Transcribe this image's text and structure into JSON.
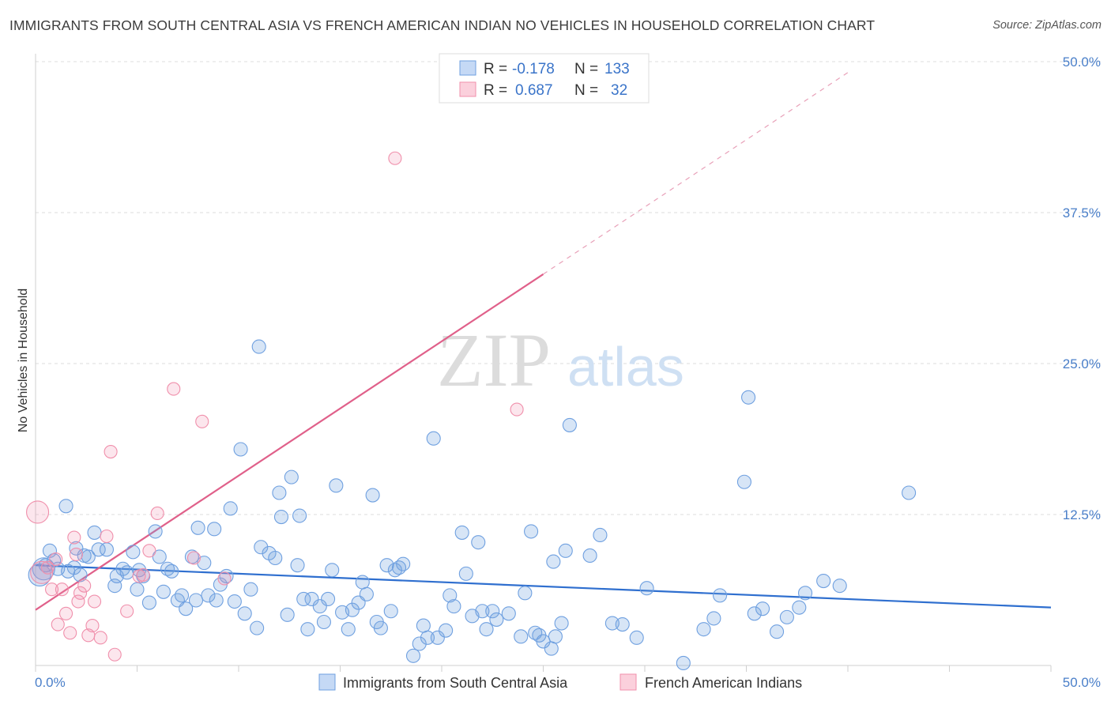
{
  "title": "IMMIGRANTS FROM SOUTH CENTRAL ASIA VS FRENCH AMERICAN INDIAN NO VEHICLES IN HOUSEHOLD CORRELATION CHART",
  "source": "Source: ZipAtlas.com",
  "watermark": {
    "zip": "ZIP",
    "atlas": "atlas"
  },
  "legend": {
    "r_label": "R =",
    "n_label": "N =",
    "rows": [
      {
        "r": "-0.178",
        "n": "133",
        "color": "#6fa0e0"
      },
      {
        "r": "0.687",
        "n": "32",
        "color": "#f08fab"
      }
    ]
  },
  "colors": {
    "blue": "#6fa0e0",
    "pink": "#f08fab",
    "blue_line": "#2f6fcf",
    "pink_line": "#e0608a",
    "tick": "#4a7fc9"
  },
  "chart_data": {
    "type": "scatter",
    "xlabel": "",
    "ylabel": "No Vehicles in Household",
    "xlim": [
      0,
      50
    ],
    "ylim": [
      0,
      50
    ],
    "x_tick_labels": [
      "0.0%",
      "50.0%"
    ],
    "y_ticks": [
      12.5,
      25.0,
      37.5,
      50.0
    ],
    "y_tick_labels": [
      "12.5%",
      "25.0%",
      "37.5%",
      "50.0%"
    ],
    "grid": true,
    "legend_position": "top-center",
    "series": [
      {
        "name": "Immigrants from South Central Asia",
        "color": "#6fa0e0",
        "trend": {
          "x0": 0,
          "y0": 8.3,
          "x1": 50,
          "y1": 4.8
        },
        "points": [
          [
            0.2,
            7.5
          ],
          [
            0.4,
            8.0
          ],
          [
            0.5,
            8.3
          ],
          [
            0.7,
            9.5
          ],
          [
            0.9,
            8.7
          ],
          [
            1.1,
            8.0
          ],
          [
            1.5,
            13.2
          ],
          [
            1.6,
            7.8
          ],
          [
            1.9,
            8.1
          ],
          [
            2.0,
            9.7
          ],
          [
            2.2,
            7.5
          ],
          [
            2.4,
            9.1
          ],
          [
            2.6,
            9.0
          ],
          [
            2.9,
            11.0
          ],
          [
            3.1,
            9.6
          ],
          [
            3.5,
            9.6
          ],
          [
            3.9,
            6.6
          ],
          [
            4.0,
            7.4
          ],
          [
            4.3,
            8.0
          ],
          [
            4.5,
            7.7
          ],
          [
            4.8,
            9.4
          ],
          [
            5.0,
            6.3
          ],
          [
            5.1,
            7.9
          ],
          [
            5.3,
            7.4
          ],
          [
            5.6,
            5.2
          ],
          [
            5.9,
            11.1
          ],
          [
            6.1,
            9.0
          ],
          [
            6.3,
            6.1
          ],
          [
            6.5,
            8.0
          ],
          [
            6.7,
            7.8
          ],
          [
            7.0,
            5.4
          ],
          [
            7.2,
            5.8
          ],
          [
            7.4,
            4.7
          ],
          [
            7.7,
            9.0
          ],
          [
            7.9,
            5.4
          ],
          [
            8.0,
            11.4
          ],
          [
            8.3,
            8.5
          ],
          [
            8.5,
            5.8
          ],
          [
            8.8,
            11.3
          ],
          [
            8.9,
            5.4
          ],
          [
            9.1,
            6.7
          ],
          [
            9.4,
            7.4
          ],
          [
            9.6,
            13.0
          ],
          [
            9.8,
            5.3
          ],
          [
            10.1,
            17.9
          ],
          [
            10.3,
            4.3
          ],
          [
            10.6,
            6.3
          ],
          [
            10.9,
            3.1
          ],
          [
            11.1,
            9.8
          ],
          [
            11.0,
            26.4
          ],
          [
            11.5,
            9.3
          ],
          [
            11.8,
            8.9
          ],
          [
            12.0,
            14.3
          ],
          [
            12.1,
            12.3
          ],
          [
            12.4,
            4.2
          ],
          [
            12.6,
            15.6
          ],
          [
            12.9,
            8.3
          ],
          [
            13.0,
            12.4
          ],
          [
            13.2,
            5.5
          ],
          [
            13.4,
            3.0
          ],
          [
            13.6,
            5.5
          ],
          [
            14.0,
            4.9
          ],
          [
            14.2,
            3.6
          ],
          [
            14.4,
            5.5
          ],
          [
            14.6,
            7.9
          ],
          [
            14.8,
            14.9
          ],
          [
            15.1,
            4.4
          ],
          [
            15.4,
            3.0
          ],
          [
            15.6,
            4.6
          ],
          [
            15.9,
            5.2
          ],
          [
            16.1,
            6.9
          ],
          [
            16.3,
            5.9
          ],
          [
            16.6,
            14.1
          ],
          [
            16.8,
            3.6
          ],
          [
            17.0,
            3.1
          ],
          [
            17.3,
            8.3
          ],
          [
            17.5,
            4.5
          ],
          [
            17.7,
            7.9
          ],
          [
            17.9,
            8.1
          ],
          [
            18.1,
            8.4
          ],
          [
            18.6,
            0.8
          ],
          [
            18.9,
            1.8
          ],
          [
            19.1,
            3.3
          ],
          [
            19.3,
            2.3
          ],
          [
            19.6,
            18.8
          ],
          [
            19.8,
            2.3
          ],
          [
            20.2,
            2.9
          ],
          [
            20.4,
            5.8
          ],
          [
            20.6,
            4.9
          ],
          [
            21.0,
            11.0
          ],
          [
            21.2,
            7.6
          ],
          [
            21.5,
            4.1
          ],
          [
            21.8,
            10.2
          ],
          [
            22.0,
            4.5
          ],
          [
            22.2,
            3.0
          ],
          [
            22.5,
            4.5
          ],
          [
            22.7,
            3.8
          ],
          [
            23.3,
            4.3
          ],
          [
            23.9,
            2.4
          ],
          [
            24.1,
            6.0
          ],
          [
            24.4,
            11.1
          ],
          [
            24.6,
            2.7
          ],
          [
            24.8,
            2.5
          ],
          [
            25.0,
            2.0
          ],
          [
            25.4,
            1.4
          ],
          [
            25.5,
            8.6
          ],
          [
            25.6,
            2.4
          ],
          [
            25.9,
            3.5
          ],
          [
            26.1,
            9.5
          ],
          [
            26.3,
            19.9
          ],
          [
            27.3,
            9.1
          ],
          [
            27.8,
            10.8
          ],
          [
            28.4,
            3.5
          ],
          [
            28.9,
            3.4
          ],
          [
            29.6,
            2.3
          ],
          [
            30.1,
            6.4
          ],
          [
            31.9,
            0.2
          ],
          [
            32.9,
            3.0
          ],
          [
            33.4,
            3.9
          ],
          [
            33.7,
            5.8
          ],
          [
            34.9,
            15.2
          ],
          [
            35.1,
            22.2
          ],
          [
            35.4,
            4.3
          ],
          [
            35.8,
            4.7
          ],
          [
            36.5,
            2.8
          ],
          [
            37.0,
            4.0
          ],
          [
            37.6,
            4.8
          ],
          [
            37.9,
            6.0
          ],
          [
            38.8,
            7.0
          ],
          [
            39.6,
            6.6
          ],
          [
            43.0,
            14.3
          ]
        ]
      },
      {
        "name": "French American Indians",
        "color": "#f08fab",
        "trend": {
          "x0": 0,
          "y0": 4.6,
          "x1": 25,
          "y1": 32.4,
          "x1_dashed": 40,
          "y1_dashed": 49.1
        },
        "points": [
          [
            0.1,
            12.7
          ],
          [
            0.3,
            7.7
          ],
          [
            0.6,
            8.1
          ],
          [
            0.8,
            6.3
          ],
          [
            1.0,
            8.8
          ],
          [
            1.1,
            3.4
          ],
          [
            1.3,
            6.3
          ],
          [
            1.5,
            4.3
          ],
          [
            1.7,
            2.7
          ],
          [
            1.9,
            10.6
          ],
          [
            2.1,
            5.3
          ],
          [
            2.2,
            6.0
          ],
          [
            2.4,
            6.6
          ],
          [
            2.6,
            2.5
          ],
          [
            2.8,
            3.3
          ],
          [
            2.9,
            5.3
          ],
          [
            3.2,
            2.3
          ],
          [
            3.5,
            10.7
          ],
          [
            3.7,
            17.7
          ],
          [
            3.9,
            0.9
          ],
          [
            4.5,
            4.5
          ],
          [
            5.1,
            7.4
          ],
          [
            5.3,
            7.5
          ],
          [
            5.6,
            9.5
          ],
          [
            6.0,
            12.6
          ],
          [
            6.8,
            22.9
          ],
          [
            7.8,
            8.9
          ],
          [
            8.2,
            20.2
          ],
          [
            9.3,
            7.2
          ],
          [
            17.7,
            42.0
          ],
          [
            23.7,
            21.2
          ],
          [
            2.0,
            9.2
          ]
        ]
      }
    ]
  }
}
